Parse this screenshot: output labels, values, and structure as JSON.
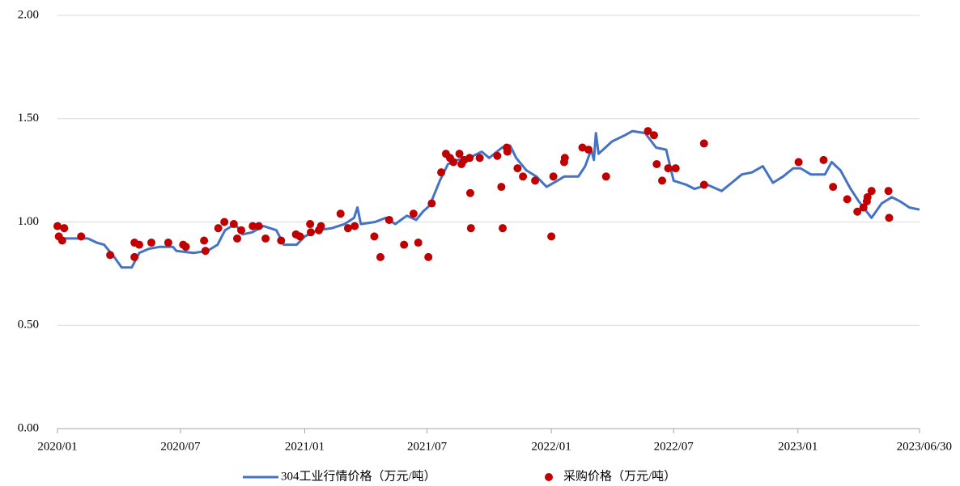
{
  "chart_data": {
    "type": "combo",
    "xlim": [
      "2020/01/01",
      "2023/06/30"
    ],
    "xticks": [
      {
        "value": "2020/01/01",
        "label": "2020/01"
      },
      {
        "value": "2020/07/01",
        "label": "2020/07"
      },
      {
        "value": "2021/01/01",
        "label": "2021/01"
      },
      {
        "value": "2021/07/01",
        "label": "2021/07"
      },
      {
        "value": "2022/01/01",
        "label": "2022/01"
      },
      {
        "value": "2022/07/01",
        "label": "2022/07"
      },
      {
        "value": "2023/01/01",
        "label": "2023/01"
      },
      "2023/06/30"
    ],
    "ylim": [
      0,
      2
    ],
    "yticks": [
      {
        "value": 0,
        "label": "0.00"
      },
      {
        "value": 0.5,
        "label": "0.50"
      },
      {
        "value": 1,
        "label": "1.00"
      },
      {
        "value": 1.5,
        "label": "1.50"
      },
      {
        "value": 2,
        "label": "2.00"
      }
    ],
    "grid": true,
    "legend": "bottom",
    "series": [
      {
        "name": "304工业行情价格（万元/吨）",
        "type": "line",
        "color": "#4472c4",
        "x": [
          "2020/01/01",
          "2020/02/15",
          "2020/02/28",
          "2020/03/10",
          "2020/03/25",
          "2020/04/05",
          "2020/04/20",
          "2020/05/01",
          "2020/05/15",
          "2020/06/01",
          "2020/06/20",
          "2020/06/25",
          "2020/07/20",
          "2020/08/10",
          "2020/08/25",
          "2020/09/05",
          "2020/09/20",
          "2020/10/01",
          "2020/10/15",
          "2020/11/01",
          "2020/11/20",
          "2020/12/01",
          "2020/12/20",
          "2021/01/01",
          "2021/01/20",
          "2021/02/10",
          "2021/03/01",
          "2021/03/15",
          "2021/03/20",
          "2021/03/25",
          "2021/04/15",
          "2021/05/01",
          "2021/05/15",
          "2021/06/01",
          "2021/06/15",
          "2021/06/25",
          "2021/07/05",
          "2021/07/20",
          "2021/08/01",
          "2021/08/15",
          "2021/09/01",
          "2021/09/20",
          "2021/10/01",
          "2021/10/20",
          "2021/11/01",
          "2021/11/10",
          "2021/11/25",
          "2021/12/10",
          "2021/12/25",
          "2022/01/10",
          "2022/01/20",
          "2022/02/10",
          "2022/02/20",
          "2022/03/01",
          "2022/03/05",
          "2022/03/08",
          "2022/03/12",
          "2022/04/01",
          "2022/04/20",
          "2022/05/01",
          "2022/05/20",
          "2022/06/05",
          "2022/06/20",
          "2022/07/01",
          "2022/07/20",
          "2022/08/01",
          "2022/08/20",
          "2022/09/10",
          "2022/09/25",
          "2022/10/10",
          "2022/10/25",
          "2022/11/10",
          "2022/11/25",
          "2022/12/10",
          "2022/12/25",
          "2023/01/05",
          "2023/01/20",
          "2023/02/10",
          "2023/02/20",
          "2023/03/05",
          "2023/03/20",
          "2023/04/01",
          "2023/04/20",
          "2023/05/05",
          "2023/05/20",
          "2023/06/01",
          "2023/06/15",
          "2023/06/30"
        ],
        "values": [
          0.92,
          0.92,
          0.9,
          0.89,
          0.83,
          0.78,
          0.78,
          0.85,
          0.87,
          0.88,
          0.88,
          0.86,
          0.85,
          0.86,
          0.89,
          0.96,
          0.99,
          0.94,
          0.95,
          0.98,
          0.96,
          0.89,
          0.89,
          0.93,
          0.96,
          0.97,
          0.99,
          1.02,
          1.07,
          0.99,
          1.0,
          1.02,
          0.99,
          1.03,
          1.01,
          1.05,
          1.08,
          1.2,
          1.28,
          1.3,
          1.31,
          1.34,
          1.31,
          1.36,
          1.37,
          1.31,
          1.25,
          1.22,
          1.17,
          1.2,
          1.22,
          1.22,
          1.27,
          1.35,
          1.3,
          1.43,
          1.33,
          1.39,
          1.42,
          1.44,
          1.43,
          1.36,
          1.35,
          1.2,
          1.18,
          1.16,
          1.18,
          1.15,
          1.19,
          1.23,
          1.24,
          1.27,
          1.19,
          1.22,
          1.26,
          1.26,
          1.23,
          1.23,
          1.29,
          1.25,
          1.16,
          1.1,
          1.02,
          1.09,
          1.12,
          1.1,
          1.07,
          1.06
        ]
      },
      {
        "name": "采购价格（万元/吨）",
        "type": "scatter",
        "color": "#c00000",
        "x": [
          "2020/01/01",
          "2020/01/03",
          "2020/01/08",
          "2020/01/11",
          "2020/02/05",
          "2020/03/19",
          "2020/04/24",
          "2020/04/24",
          "2020/05/01",
          "2020/05/19",
          "2020/06/13",
          "2020/07/05",
          "2020/07/09",
          "2020/08/05",
          "2020/08/07",
          "2020/08/26",
          "2020/09/04",
          "2020/09/18",
          "2020/09/23",
          "2020/09/29",
          "2020/10/16",
          "2020/10/25",
          "2020/11/04",
          "2020/11/27",
          "2020/12/19",
          "2020/12/25",
          "2021/01/09",
          "2021/01/10",
          "2021/01/22",
          "2021/01/25",
          "2021/02/23",
          "2021/03/06",
          "2021/03/16",
          "2021/04/14",
          "2021/04/23",
          "2021/05/06",
          "2021/05/28",
          "2021/06/11",
          "2021/06/18",
          "2021/07/03",
          "2021/07/08",
          "2021/07/22",
          "2021/07/29",
          "2021/08/04",
          "2021/08/09",
          "2021/08/18",
          "2021/08/21",
          "2021/08/25",
          "2021/09/02",
          "2021/09/03",
          "2021/09/04",
          "2021/09/17",
          "2021/10/13",
          "2021/10/19",
          "2021/10/21",
          "2021/10/27",
          "2021/10/28",
          "2021/11/12",
          "2021/11/20",
          "2021/12/08",
          "2022/01/01",
          "2022/01/04",
          "2022/01/20",
          "2022/01/21",
          "2022/02/16",
          "2022/02/25",
          "2022/03/23",
          "2022/05/24",
          "2022/06/02",
          "2022/06/06",
          "2022/06/14",
          "2022/06/23",
          "2022/07/04",
          "2022/08/15",
          "2022/08/15",
          "2023/01/02",
          "2023/02/08",
          "2023/02/22",
          "2023/03/15",
          "2023/03/30",
          "2023/04/08",
          "2023/04/13",
          "2023/04/14",
          "2023/04/20",
          "2023/05/15",
          "2023/05/16"
        ],
        "values": [
          0.98,
          0.93,
          0.91,
          0.97,
          0.93,
          0.84,
          0.9,
          0.83,
          0.89,
          0.9,
          0.9,
          0.89,
          0.88,
          0.91,
          0.86,
          0.97,
          1.0,
          0.99,
          0.92,
          0.96,
          0.98,
          0.98,
          0.92,
          0.91,
          0.94,
          0.93,
          0.99,
          0.95,
          0.96,
          0.98,
          1.04,
          0.97,
          0.98,
          0.93,
          0.83,
          1.01,
          0.89,
          1.04,
          0.9,
          0.83,
          1.09,
          1.24,
          1.33,
          1.31,
          1.29,
          1.33,
          1.28,
          1.3,
          1.31,
          1.14,
          0.97,
          1.31,
          1.32,
          1.17,
          0.97,
          1.36,
          1.34,
          1.26,
          1.22,
          1.2,
          0.93,
          1.22,
          1.29,
          1.31,
          1.36,
          1.35,
          1.22,
          1.44,
          1.42,
          1.28,
          1.2,
          1.26,
          1.26,
          1.38,
          1.18,
          1.29,
          1.3,
          1.17,
          1.11,
          1.05,
          1.07,
          1.1,
          1.12,
          1.15,
          1.15,
          1.02
        ]
      }
    ]
  }
}
